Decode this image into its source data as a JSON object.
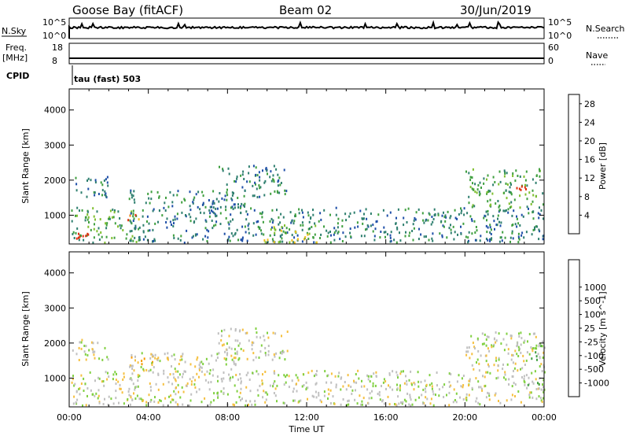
{
  "header": {
    "title": "Goose Bay (fitACF)",
    "beam": "Beam 02",
    "date": "30/Jun/2019"
  },
  "top_panels": {
    "nsky": {
      "label": "N.Sky",
      "ticks_left": [
        "10^5",
        "10^0"
      ],
      "ticks_right": [
        "10^5",
        "10^0"
      ],
      "right_label": "N.Search"
    },
    "freq": {
      "label_line1": "Freq.",
      "label_line2": "[MHz]",
      "ticks_left": [
        "18",
        "8"
      ],
      "ticks_right": [
        "60",
        "0"
      ],
      "right_label": "Nave"
    },
    "cpid": {
      "label": "CPID",
      "program": "tau (fast) 503"
    }
  },
  "colors": {
    "power": [
      "#1a1aff",
      "#1f4fa8",
      "#2f7f6f",
      "#3f9f3f",
      "#7fbf2f",
      "#efbf1f",
      "#ef7f0f",
      "#df2f0f"
    ],
    "velocity": [
      "#e31a1c",
      "#f05010",
      "#f59a00",
      "#f5c040",
      "#c0c0c0",
      "#80d040",
      "#40a040",
      "#207070",
      "#2040a0",
      "#1010d0"
    ]
  },
  "chart_data": [
    {
      "type": "heatmap",
      "name": "power",
      "xlabel": "",
      "ylabel": "Slant Range [km]",
      "xlim": [
        "00:00",
        "24:00"
      ],
      "ylim": [
        180,
        4600
      ],
      "yticks": [
        "1000",
        "2000",
        "3000",
        "4000"
      ],
      "colorbar": {
        "label": "Power [dB]",
        "ticks": [
          "4",
          "8",
          "12",
          "16",
          "20",
          "24",
          "28"
        ],
        "range": [
          0,
          30
        ]
      },
      "regions": [
        {
          "t0": 0.1,
          "t1": 3.5,
          "r0": 200,
          "r1": 1200,
          "level": 3
        },
        {
          "t0": 0.0,
          "t1": 1.0,
          "r0": 200,
          "r1": 500,
          "level": 7
        },
        {
          "t0": 2.8,
          "t1": 3.5,
          "r0": 800,
          "r1": 1000,
          "level": 6
        },
        {
          "t0": 0.1,
          "t1": 2.0,
          "r0": 1500,
          "r1": 2100,
          "level": 2
        },
        {
          "t0": 3.0,
          "t1": 9.0,
          "r0": 200,
          "r1": 1700,
          "level": 2
        },
        {
          "t0": 7.5,
          "t1": 11.0,
          "r0": 1500,
          "r1": 2400,
          "level": 2
        },
        {
          "t0": 9.0,
          "t1": 24.0,
          "r0": 200,
          "r1": 1200,
          "level": 2
        },
        {
          "t0": 20.0,
          "t1": 24.0,
          "r0": 1200,
          "r1": 2300,
          "level": 3
        },
        {
          "t0": 22.5,
          "t1": 23.3,
          "r0": 1600,
          "r1": 1900,
          "level": 7
        },
        {
          "t0": 9.5,
          "t1": 12.5,
          "r0": 200,
          "r1": 700,
          "level": 4
        }
      ]
    },
    {
      "type": "heatmap",
      "name": "velocity",
      "xlabel": "Time UT",
      "ylabel": "Slant Range [km]",
      "xlim": [
        "00:00",
        "24:00"
      ],
      "ylim": [
        180,
        4600
      ],
      "xticks": [
        "00:00",
        "04:00",
        "08:00",
        "12:00",
        "16:00",
        "20:00",
        "00:00"
      ],
      "yticks": [
        "1000",
        "2000",
        "3000",
        "4000"
      ],
      "colorbar": {
        "label": "Velocity [m s^-1]",
        "ticks": [
          "-1000",
          "-500",
          "-100",
          "-25",
          "25",
          "100",
          "500",
          "1000"
        ]
      },
      "regions": [
        {
          "t0": 0.1,
          "t1": 3.5,
          "r0": 200,
          "r1": 1200,
          "level": 4
        },
        {
          "t0": 0.1,
          "t1": 2.0,
          "r0": 1500,
          "r1": 2100,
          "level": 4
        },
        {
          "t0": 3.0,
          "t1": 4.6,
          "r0": 1300,
          "r1": 1600,
          "level": 3
        },
        {
          "t0": 3.0,
          "t1": 9.0,
          "r0": 200,
          "r1": 1700,
          "level": 4
        },
        {
          "t0": 7.5,
          "t1": 11.0,
          "r0": 1500,
          "r1": 2400,
          "level": 4
        },
        {
          "t0": 9.0,
          "t1": 24.0,
          "r0": 200,
          "r1": 1200,
          "level": 4
        },
        {
          "t0": 20.0,
          "t1": 24.0,
          "r0": 1200,
          "r1": 2300,
          "level": 4
        },
        {
          "t0": 22.5,
          "t1": 24.0,
          "r0": 1500,
          "r1": 2100,
          "level": 5
        },
        {
          "t0": 22.8,
          "t1": 24.0,
          "r0": 600,
          "r1": 900,
          "level": 5
        }
      ]
    }
  ]
}
